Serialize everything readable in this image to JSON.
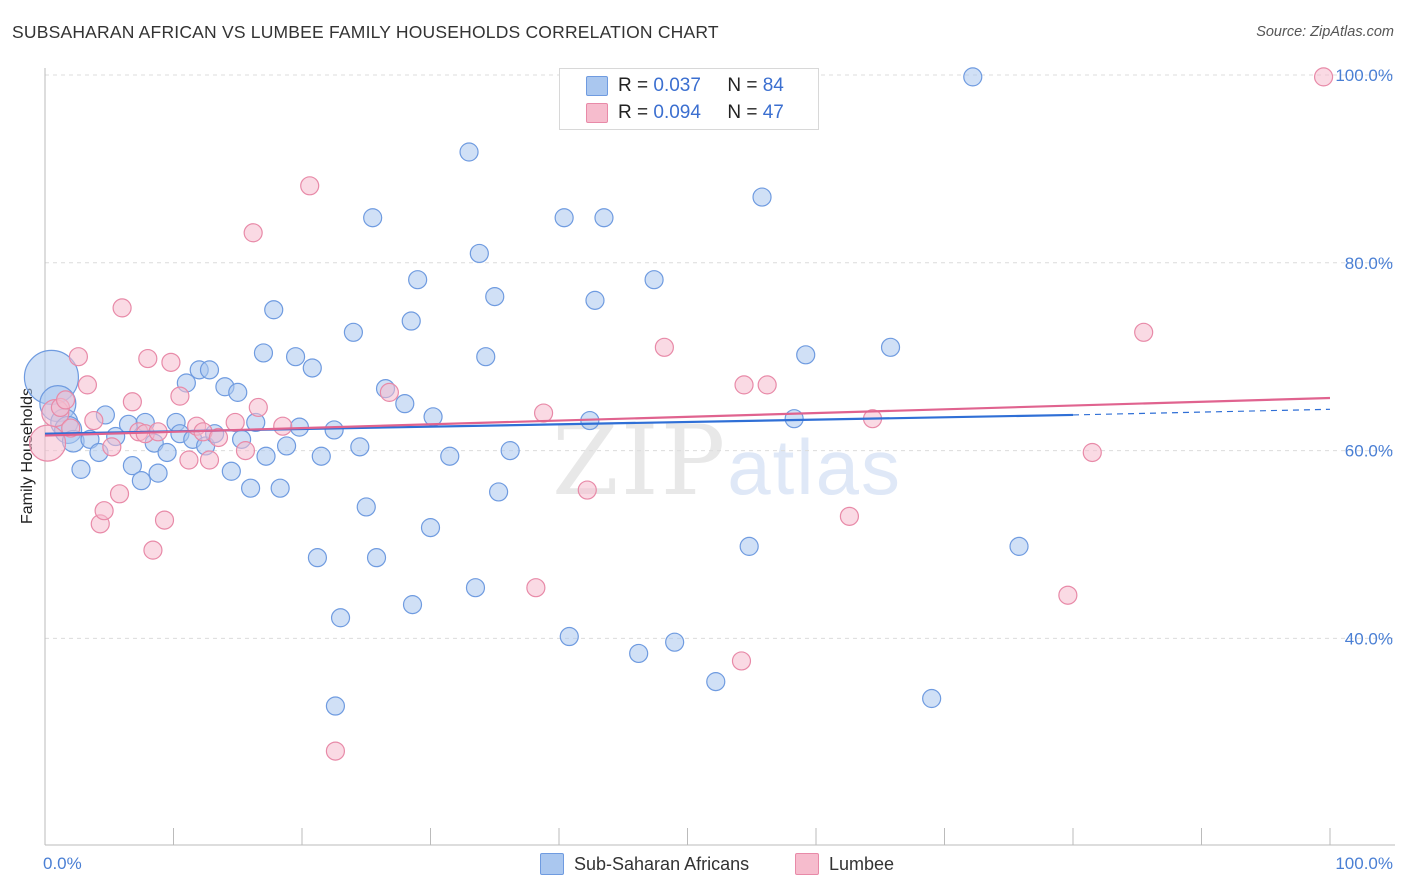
{
  "header": {
    "title": "SUBSAHARAN AFRICAN VS LUMBEE FAMILY HOUSEHOLDS CORRELATION CHART",
    "source": "Source: ZipAtlas.com"
  },
  "watermark": {
    "zip": "ZIP",
    "atlas": "atlas"
  },
  "colors": {
    "blue_fill": "#aac7ef",
    "blue_stroke": "#6f9be0",
    "blue_line": "#2f6fd6",
    "pink_fill": "#f6bccd",
    "pink_stroke": "#e88aa8",
    "pink_line": "#e0638f",
    "grid": "#dcdcdc",
    "axis": "#bbbbbb",
    "tick_text": "#4a7fd4"
  },
  "legend": {
    "rows": [
      {
        "r_label": "R =",
        "r_value": "0.037",
        "n_label": "N =",
        "n_value": "84"
      },
      {
        "r_label": "R =",
        "r_value": "0.094",
        "n_label": "N =",
        "n_value": "47"
      }
    ],
    "bottom": [
      {
        "label": "Sub-Saharan Africans"
      },
      {
        "label": "Lumbee"
      }
    ]
  },
  "chart_data": {
    "type": "scatter",
    "title": "SUBSAHARAN AFRICAN VS LUMBEE FAMILY HOUSEHOLDS CORRELATION CHART",
    "xlabel": "",
    "ylabel": "Family Households",
    "xlim": [
      0,
      100
    ],
    "ylim": [
      18,
      100
    ],
    "x_tick_labels": [
      "0.0%",
      "100.0%"
    ],
    "y_ticks": [
      40,
      60,
      80,
      100
    ],
    "y_tick_labels": [
      "40.0%",
      "60.0%",
      "80.0%",
      "100.0%"
    ],
    "grid": true,
    "series": [
      {
        "name": "Sub-Saharan Africans",
        "R": 0.037,
        "N": 84,
        "trend": {
          "x0": 0,
          "y0": 61.8,
          "x1": 80,
          "y1": 63.8,
          "dashed_to_x": 100,
          "dashed_to_y": 64.4
        },
        "points": [
          {
            "x": 0.5,
            "y": 67.8,
            "s": 3
          },
          {
            "x": 1.0,
            "y": 65.0,
            "s": 2
          },
          {
            "x": 1.5,
            "y": 63.0,
            "s": 1.5
          },
          {
            "x": 1.8,
            "y": 62.2,
            "s": 1.5
          },
          {
            "x": 2.2,
            "y": 61.0,
            "s": 1.2
          },
          {
            "x": 2.8,
            "y": 58.0,
            "s": 1
          },
          {
            "x": 3.5,
            "y": 61.2,
            "s": 1
          },
          {
            "x": 4.2,
            "y": 59.8,
            "s": 1
          },
          {
            "x": 4.7,
            "y": 63.8,
            "s": 1
          },
          {
            "x": 5.5,
            "y": 61.5,
            "s": 1
          },
          {
            "x": 6.5,
            "y": 62.8,
            "s": 1
          },
          {
            "x": 6.8,
            "y": 58.4,
            "s": 1
          },
          {
            "x": 7.5,
            "y": 56.8,
            "s": 1
          },
          {
            "x": 7.8,
            "y": 63.0,
            "s": 1
          },
          {
            "x": 8.5,
            "y": 60.8,
            "s": 1
          },
          {
            "x": 8.8,
            "y": 57.6,
            "s": 1
          },
          {
            "x": 9.5,
            "y": 59.8,
            "s": 1
          },
          {
            "x": 10.2,
            "y": 63.0,
            "s": 1
          },
          {
            "x": 10.5,
            "y": 61.8,
            "s": 1
          },
          {
            "x": 11.0,
            "y": 67.2,
            "s": 1
          },
          {
            "x": 11.5,
            "y": 61.2,
            "s": 1
          },
          {
            "x": 12.0,
            "y": 68.6,
            "s": 1
          },
          {
            "x": 12.5,
            "y": 60.5,
            "s": 1
          },
          {
            "x": 12.8,
            "y": 68.6,
            "s": 1
          },
          {
            "x": 13.2,
            "y": 61.8,
            "s": 1
          },
          {
            "x": 14.0,
            "y": 66.8,
            "s": 1
          },
          {
            "x": 14.5,
            "y": 57.8,
            "s": 1
          },
          {
            "x": 15.0,
            "y": 66.2,
            "s": 1
          },
          {
            "x": 15.3,
            "y": 61.2,
            "s": 1
          },
          {
            "x": 16.0,
            "y": 56.0,
            "s": 1
          },
          {
            "x": 16.4,
            "y": 63.0,
            "s": 1
          },
          {
            "x": 17.0,
            "y": 70.4,
            "s": 1
          },
          {
            "x": 17.2,
            "y": 59.4,
            "s": 1
          },
          {
            "x": 17.8,
            "y": 75.0,
            "s": 1
          },
          {
            "x": 18.3,
            "y": 56.0,
            "s": 1
          },
          {
            "x": 18.8,
            "y": 60.5,
            "s": 1
          },
          {
            "x": 19.5,
            "y": 70.0,
            "s": 1
          },
          {
            "x": 19.8,
            "y": 62.5,
            "s": 1
          },
          {
            "x": 20.8,
            "y": 68.8,
            "s": 1
          },
          {
            "x": 21.5,
            "y": 59.4,
            "s": 1
          },
          {
            "x": 22.5,
            "y": 62.2,
            "s": 1
          },
          {
            "x": 21.2,
            "y": 48.6,
            "s": 1
          },
          {
            "x": 23.0,
            "y": 42.2,
            "s": 1
          },
          {
            "x": 22.6,
            "y": 32.8,
            "s": 1
          },
          {
            "x": 24.0,
            "y": 72.6,
            "s": 1
          },
          {
            "x": 24.5,
            "y": 60.4,
            "s": 1
          },
          {
            "x": 25.0,
            "y": 54.0,
            "s": 1
          },
          {
            "x": 25.5,
            "y": 84.8,
            "s": 1
          },
          {
            "x": 25.8,
            "y": 48.6,
            "s": 1
          },
          {
            "x": 26.5,
            "y": 66.6,
            "s": 1
          },
          {
            "x": 28.0,
            "y": 65.0,
            "s": 1
          },
          {
            "x": 28.5,
            "y": 73.8,
            "s": 1
          },
          {
            "x": 28.6,
            "y": 43.6,
            "s": 1
          },
          {
            "x": 29.0,
            "y": 78.2,
            "s": 1
          },
          {
            "x": 30.2,
            "y": 63.6,
            "s": 1
          },
          {
            "x": 30.0,
            "y": 51.8,
            "s": 1
          },
          {
            "x": 31.5,
            "y": 59.4,
            "s": 1
          },
          {
            "x": 33.0,
            "y": 91.8,
            "s": 1
          },
          {
            "x": 33.5,
            "y": 45.4,
            "s": 1
          },
          {
            "x": 33.8,
            "y": 81.0,
            "s": 1
          },
          {
            "x": 34.3,
            "y": 70.0,
            "s": 1
          },
          {
            "x": 35.0,
            "y": 76.4,
            "s": 1
          },
          {
            "x": 35.3,
            "y": 55.6,
            "s": 1
          },
          {
            "x": 36.2,
            "y": 60.0,
            "s": 1
          },
          {
            "x": 40.4,
            "y": 84.8,
            "s": 1
          },
          {
            "x": 40.8,
            "y": 40.2,
            "s": 1
          },
          {
            "x": 42.4,
            "y": 63.2,
            "s": 1
          },
          {
            "x": 42.8,
            "y": 76.0,
            "s": 1
          },
          {
            "x": 43.5,
            "y": 84.8,
            "s": 1
          },
          {
            "x": 46.2,
            "y": 38.4,
            "s": 1
          },
          {
            "x": 47.4,
            "y": 78.2,
            "s": 1
          },
          {
            "x": 49.0,
            "y": 39.6,
            "s": 1
          },
          {
            "x": 52.2,
            "y": 35.4,
            "s": 1
          },
          {
            "x": 54.8,
            "y": 49.8,
            "s": 1
          },
          {
            "x": 55.8,
            "y": 87.0,
            "s": 1
          },
          {
            "x": 58.3,
            "y": 63.4,
            "s": 1
          },
          {
            "x": 59.2,
            "y": 70.2,
            "s": 1
          },
          {
            "x": 65.8,
            "y": 71.0,
            "s": 1
          },
          {
            "x": 69.0,
            "y": 33.6,
            "s": 1
          },
          {
            "x": 72.2,
            "y": 99.8,
            "s": 1
          },
          {
            "x": 75.8,
            "y": 49.8,
            "s": 1
          }
        ]
      },
      {
        "name": "Lumbee",
        "R": 0.094,
        "N": 47,
        "trend": {
          "x0": 0,
          "y0": 61.6,
          "x1": 100,
          "y1": 65.6
        },
        "points": [
          {
            "x": 0.2,
            "y": 60.8,
            "s": 2
          },
          {
            "x": 0.8,
            "y": 64.0,
            "s": 1.5
          },
          {
            "x": 1.2,
            "y": 64.6,
            "s": 1
          },
          {
            "x": 1.6,
            "y": 65.4,
            "s": 1
          },
          {
            "x": 2.0,
            "y": 62.4,
            "s": 1
          },
          {
            "x": 2.6,
            "y": 70.0,
            "s": 1
          },
          {
            "x": 3.3,
            "y": 67.0,
            "s": 1
          },
          {
            "x": 3.8,
            "y": 63.2,
            "s": 1
          },
          {
            "x": 4.3,
            "y": 52.2,
            "s": 1
          },
          {
            "x": 4.6,
            "y": 53.6,
            "s": 1
          },
          {
            "x": 5.2,
            "y": 60.4,
            "s": 1
          },
          {
            "x": 5.8,
            "y": 55.4,
            "s": 1
          },
          {
            "x": 6.0,
            "y": 75.2,
            "s": 1
          },
          {
            "x": 6.8,
            "y": 65.2,
            "s": 1
          },
          {
            "x": 7.3,
            "y": 62.0,
            "s": 1
          },
          {
            "x": 7.8,
            "y": 61.8,
            "s": 1
          },
          {
            "x": 8.0,
            "y": 69.8,
            "s": 1
          },
          {
            "x": 8.4,
            "y": 49.4,
            "s": 1
          },
          {
            "x": 8.8,
            "y": 62.0,
            "s": 1
          },
          {
            "x": 9.3,
            "y": 52.6,
            "s": 1
          },
          {
            "x": 9.8,
            "y": 69.4,
            "s": 1
          },
          {
            "x": 10.5,
            "y": 65.8,
            "s": 1
          },
          {
            "x": 11.2,
            "y": 59.0,
            "s": 1
          },
          {
            "x": 11.8,
            "y": 62.6,
            "s": 1
          },
          {
            "x": 12.3,
            "y": 62.0,
            "s": 1
          },
          {
            "x": 12.8,
            "y": 59.0,
            "s": 1
          },
          {
            "x": 13.5,
            "y": 61.4,
            "s": 1
          },
          {
            "x": 14.8,
            "y": 63.0,
            "s": 1
          },
          {
            "x": 15.6,
            "y": 60.0,
            "s": 1
          },
          {
            "x": 16.2,
            "y": 83.2,
            "s": 1
          },
          {
            "x": 16.6,
            "y": 64.6,
            "s": 1
          },
          {
            "x": 18.5,
            "y": 62.6,
            "s": 1
          },
          {
            "x": 20.6,
            "y": 88.2,
            "s": 1
          },
          {
            "x": 22.6,
            "y": 28.0,
            "s": 1
          },
          {
            "x": 26.8,
            "y": 66.2,
            "s": 1
          },
          {
            "x": 38.2,
            "y": 45.4,
            "s": 1
          },
          {
            "x": 38.8,
            "y": 64.0,
            "s": 1
          },
          {
            "x": 42.2,
            "y": 55.8,
            "s": 1
          },
          {
            "x": 48.2,
            "y": 71.0,
            "s": 1
          },
          {
            "x": 54.2,
            "y": 37.6,
            "s": 1
          },
          {
            "x": 54.4,
            "y": 67.0,
            "s": 1
          },
          {
            "x": 56.2,
            "y": 67.0,
            "s": 1
          },
          {
            "x": 62.6,
            "y": 53.0,
            "s": 1
          },
          {
            "x": 64.4,
            "y": 63.4,
            "s": 1
          },
          {
            "x": 79.6,
            "y": 44.6,
            "s": 1
          },
          {
            "x": 81.5,
            "y": 59.8,
            "s": 1
          },
          {
            "x": 85.5,
            "y": 72.6,
            "s": 1
          },
          {
            "x": 99.5,
            "y": 99.8,
            "s": 1
          }
        ]
      }
    ]
  }
}
